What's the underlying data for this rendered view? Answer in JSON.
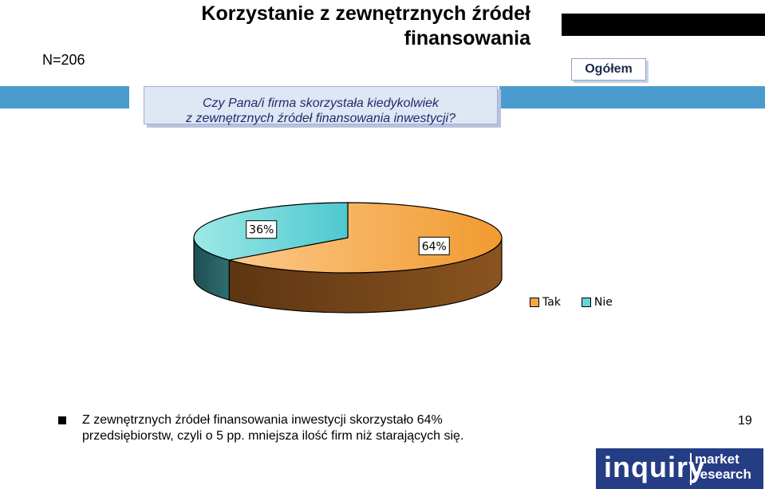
{
  "sample_label": "N=206",
  "title": "Korzystanie z zewnętrznych źródeł finansowania",
  "segment_label": "Ogółem",
  "question": {
    "line1": "Czy Pana/i firma skorzystała kiedykolwiek",
    "line2": "z zewnętrznych źródeł finansowania inwestycji?"
  },
  "chart_data": {
    "type": "pie",
    "title": "",
    "categories": [
      "Tak",
      "Nie"
    ],
    "values": [
      64,
      36
    ],
    "unit": "%",
    "data_labels": [
      "64%",
      "36%"
    ],
    "colors": [
      "#f5a64a",
      "#63d5d6"
    ],
    "side_colors": [
      "#7a4a1e",
      "#2c6565"
    ],
    "legend_placement": "bottom-right",
    "three_d": true
  },
  "note": {
    "line1": "Z zewnętrznych źródeł finansowania inwestycji skorzystało 64%",
    "line2": "przedsiębiorstw, czyli o 5 pp. mniejsza ilość firm niż starających się."
  },
  "page_number": "19",
  "logo": {
    "main": "inquiry",
    "sub1": "market",
    "sub2": "research",
    "color": "#253d84"
  }
}
